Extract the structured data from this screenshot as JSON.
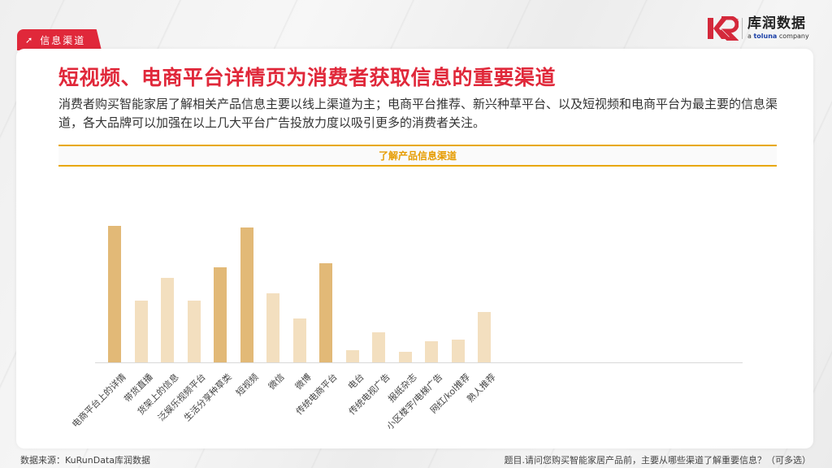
{
  "section_tab": {
    "icon": "arrow-up-right-icon",
    "label": "信息渠道"
  },
  "logo": {
    "cn": "库润数据",
    "en_prefix": "a ",
    "en_brand": "toluna",
    "en_suffix": " company"
  },
  "title": "短视频、电商平台详情页为消费者获取信息的重要渠道",
  "description": "消费者购买智能家居了解相关产品信息主要以线上渠道为主；电商平台推荐、新兴种草平台、以及短视频和电商平台为最主要的信息渠道，各大品牌可以加强在以上几大平台广告投放力度以吸引更多的消费者关注。",
  "footer": {
    "source": "数据来源：KuRunData库润数据",
    "question": "题目.请问您购买智能家居产品前，主要从哪些渠道了解重要信息？（可多选）"
  },
  "colors": {
    "accent_red": "#e0283a",
    "gold": "#e8a800",
    "bar_dark": "#e2b977",
    "bar_light": "#f3dfbf"
  },
  "chart_data": {
    "type": "bar",
    "title": "了解产品信息渠道",
    "xlabel": "",
    "ylabel": "",
    "grid": false,
    "legend": null,
    "note": "No axis values shown; values are relative bar heights in pixels (max ≈ 168)",
    "categories": [
      "电商平台上的详情",
      "带货直播",
      "货架上的信息",
      "泛娱乐视频平台",
      "生活分享种草类",
      "短视频",
      "微信",
      "微博",
      "传统电商平台",
      "电台",
      "传统电视广告",
      "报纸杂志",
      "小区楼宇/电梯广告",
      "网红/kol推荐",
      "熟人推荐"
    ],
    "values": [
      168,
      76,
      104,
      76,
      117,
      166,
      85,
      54,
      122,
      15,
      37,
      13,
      26,
      28,
      62
    ],
    "highlighted": [
      true,
      false,
      false,
      false,
      true,
      true,
      false,
      false,
      true,
      false,
      false,
      false,
      false,
      false,
      false
    ]
  }
}
